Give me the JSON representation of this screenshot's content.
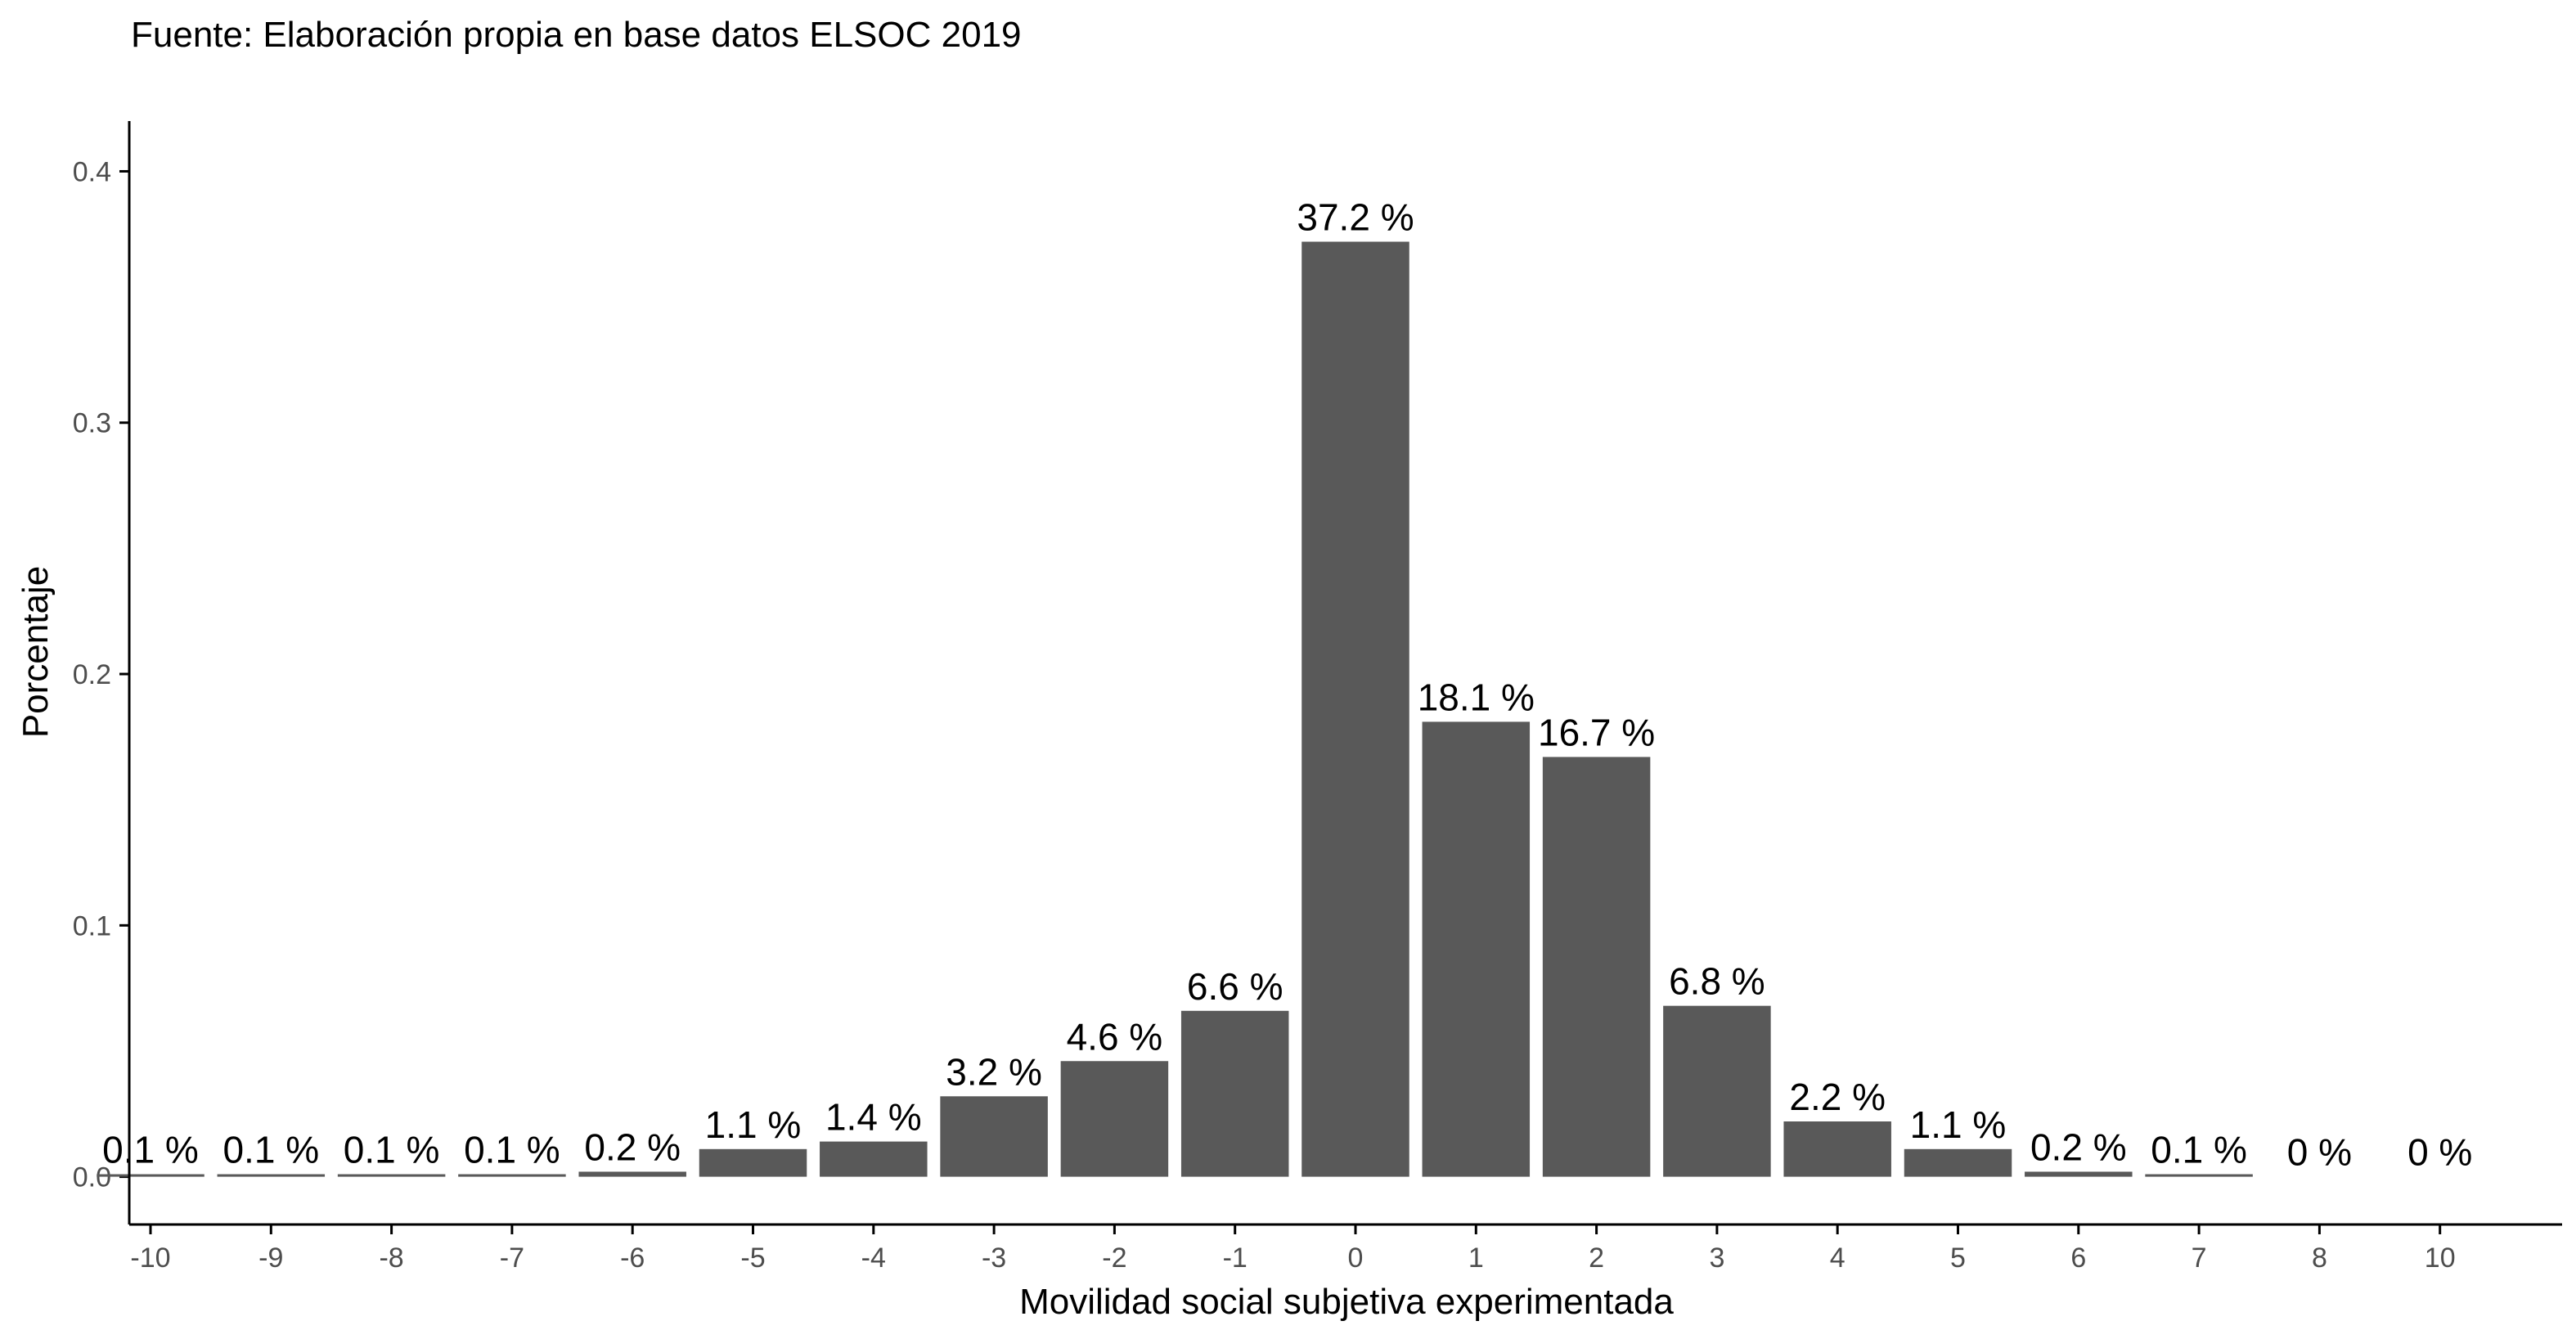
{
  "chart_data": {
    "type": "bar",
    "title": "",
    "subtitle": "Fuente: Elaboración propia en base datos ELSOC 2019",
    "xlabel": "Movilidad social subjetiva experimentada",
    "ylabel": "Porcentaje",
    "categories": [
      "-10",
      "-9",
      "-8",
      "-7",
      "-6",
      "-5",
      "-4",
      "-3",
      "-2",
      "-1",
      "0",
      "1",
      "2",
      "3",
      "4",
      "5",
      "6",
      "7",
      "8",
      "10"
    ],
    "values": [
      0.001,
      0.001,
      0.001,
      0.001,
      0.002,
      0.011,
      0.014,
      0.032,
      0.046,
      0.066,
      0.372,
      0.181,
      0.167,
      0.068,
      0.022,
      0.011,
      0.002,
      0.001,
      0.0,
      0.0
    ],
    "data_labels": [
      "0.1 %",
      "0.1 %",
      "0.1 %",
      "0.1 %",
      "0.2 %",
      "1.1 %",
      "1.4 %",
      "3.2 %",
      "4.6 %",
      "6.6 %",
      "37.2 %",
      "18.1 %",
      "16.7 %",
      "6.8 %",
      "2.2 %",
      "1.1 %",
      "0.2 %",
      "0.1 %",
      "0 %",
      "0 %"
    ],
    "yticks": [
      "0.0",
      "0.1",
      "0.2",
      "0.3",
      "0.4"
    ],
    "ytick_values": [
      0.0,
      0.1,
      0.2,
      0.3,
      0.4
    ],
    "ylim": [
      -0.019,
      0.42
    ],
    "grid": false,
    "legend": "none",
    "colors": {
      "bar": "#595959",
      "axis": "#000000",
      "tick_text": "#4d4d4d",
      "label_text": "#000000"
    }
  }
}
